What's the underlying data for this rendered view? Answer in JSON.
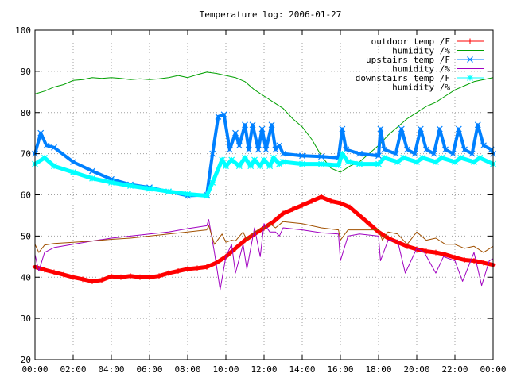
{
  "chart_data": {
    "type": "line",
    "title": "Temperature log: 2006-01-27",
    "xlabel": "",
    "ylabel": "",
    "xlim": [
      0,
      24
    ],
    "ylim": [
      20,
      100
    ],
    "grid": true,
    "legend_position": "top-right",
    "x_ticks": [
      {
        "value": 0,
        "label": "00:00"
      },
      {
        "value": 2,
        "label": "02:00"
      },
      {
        "value": 4,
        "label": "04:00"
      },
      {
        "value": 6,
        "label": "06:00"
      },
      {
        "value": 8,
        "label": "08:00"
      },
      {
        "value": 10,
        "label": "10:00"
      },
      {
        "value": 12,
        "label": "12:00"
      },
      {
        "value": 14,
        "label": "14:00"
      },
      {
        "value": 16,
        "label": "16:00"
      },
      {
        "value": 18,
        "label": "18:00"
      },
      {
        "value": 20,
        "label": "20:00"
      },
      {
        "value": 22,
        "label": "22:00"
      },
      {
        "value": 24,
        "label": "00:00"
      }
    ],
    "y_ticks": [
      {
        "value": 20,
        "label": "20"
      },
      {
        "value": 30,
        "label": "30"
      },
      {
        "value": 40,
        "label": "40"
      },
      {
        "value": 50,
        "label": "50"
      },
      {
        "value": 60,
        "label": "60"
      },
      {
        "value": 70,
        "label": "70"
      },
      {
        "value": 80,
        "label": "80"
      },
      {
        "value": 90,
        "label": "90"
      },
      {
        "value": 100,
        "label": "100"
      }
    ],
    "series": [
      {
        "name": "outdoor temp /F",
        "color": "#ff0000",
        "marker": "plus",
        "line_width": 5,
        "x": [
          0,
          0.5,
          1,
          1.5,
          2,
          2.5,
          3,
          3.5,
          4,
          4.5,
          5,
          5.5,
          6,
          6.5,
          7,
          7.5,
          8,
          8.5,
          9,
          9.5,
          10,
          10.5,
          11,
          11.5,
          12,
          12.5,
          13,
          13.5,
          14,
          14.5,
          15,
          15.5,
          16,
          16.5,
          17,
          17.5,
          18,
          18.5,
          19,
          19.5,
          20,
          20.5,
          21,
          21.5,
          22,
          22.5,
          23,
          23.5,
          24
        ],
        "y": [
          42.5,
          41.8,
          41.2,
          40.6,
          40.0,
          39.5,
          39.0,
          39.3,
          40.2,
          40.0,
          40.3,
          40.0,
          40.0,
          40.3,
          41.0,
          41.5,
          42.0,
          42.2,
          42.5,
          43.5,
          45.0,
          47.0,
          49.0,
          50.5,
          52.0,
          53.5,
          55.5,
          56.5,
          57.5,
          58.5,
          59.5,
          58.5,
          58.0,
          57.0,
          55.0,
          53.0,
          51.0,
          49.5,
          48.5,
          47.5,
          46.8,
          46.3,
          46.0,
          45.5,
          44.8,
          44.2,
          44.0,
          43.5,
          43.0
        ]
      },
      {
        "name": "humidity /%",
        "color": "#00a000",
        "marker": "none",
        "line_width": 1,
        "x": [
          0,
          0.5,
          1,
          1.5,
          2,
          2.5,
          3,
          3.5,
          4,
          4.5,
          5,
          5.5,
          6,
          6.5,
          7,
          7.5,
          8,
          8.5,
          9,
          9.5,
          10,
          10.5,
          11,
          11.5,
          12,
          12.5,
          13,
          13.5,
          14,
          14.5,
          15,
          15.5,
          16,
          16.5,
          17,
          17.5,
          18,
          18.5,
          19,
          19.5,
          20,
          20.5,
          21,
          21.5,
          22,
          22.5,
          23,
          23.5,
          24
        ],
        "y": [
          84.5,
          85.2,
          86.2,
          86.8,
          87.8,
          88.0,
          88.5,
          88.3,
          88.5,
          88.3,
          88.0,
          88.2,
          88.0,
          88.2,
          88.5,
          89.0,
          88.5,
          89.2,
          89.8,
          89.5,
          89.0,
          88.5,
          87.5,
          85.5,
          84.0,
          82.5,
          81.0,
          78.5,
          76.5,
          73.5,
          69.5,
          66.5,
          65.5,
          67.0,
          68.0,
          70.0,
          72.0,
          74.5,
          76.5,
          78.5,
          80.0,
          81.5,
          82.5,
          84.0,
          85.5,
          86.5,
          87.5,
          88.0,
          88.5
        ]
      },
      {
        "name": "upstairs temp /F",
        "color": "#0080ff",
        "marker": "cross",
        "line_width": 4,
        "x": [
          0,
          0.3,
          0.6,
          1,
          2,
          3,
          4,
          5,
          6,
          7,
          8,
          9,
          9.3,
          9.6,
          9.9,
          10.2,
          10.5,
          10.7,
          11,
          11.2,
          11.4,
          11.7,
          11.9,
          12.1,
          12.4,
          12.6,
          12.8,
          13,
          14,
          15,
          15.9,
          16.1,
          16.3,
          17,
          18,
          18.1,
          18.3,
          18.9,
          19.2,
          19.5,
          19.9,
          20.2,
          20.5,
          20.9,
          21.2,
          21.5,
          21.9,
          22.2,
          22.5,
          22.9,
          23.2,
          23.5,
          23.9,
          24
        ],
        "y": [
          70,
          75,
          72,
          71.5,
          68,
          65.8,
          63.8,
          62.5,
          61.8,
          60.8,
          59.8,
          60,
          70,
          79,
          79.5,
          71,
          75,
          72,
          77,
          71,
          77,
          71,
          76,
          71,
          77,
          71,
          72,
          70,
          69.5,
          69.3,
          69,
          76,
          71,
          70,
          69.5,
          76,
          71,
          70,
          76,
          71,
          70,
          76,
          71,
          70,
          76,
          71,
          70,
          76,
          71,
          70,
          77,
          72,
          71,
          70
        ]
      },
      {
        "name": "humidity /%",
        "color": "#a000c0",
        "marker": "none",
        "line_width": 1,
        "x": [
          0,
          0.2,
          0.5,
          1,
          2,
          3,
          4,
          5,
          6,
          7,
          8,
          9,
          9.1,
          9.4,
          9.7,
          10,
          10.3,
          10.5,
          10.9,
          11.1,
          11.5,
          11.8,
          12,
          12.3,
          12.6,
          12.8,
          13,
          14,
          15,
          15.9,
          16,
          16.4,
          17,
          18,
          18.1,
          18.5,
          19,
          19.4,
          20,
          20.4,
          21,
          21.4,
          22,
          22.4,
          23,
          23.4,
          23.8,
          24
        ],
        "y": [
          45.5,
          41.5,
          46,
          47.2,
          48,
          48.8,
          49.5,
          50,
          50.5,
          51,
          51.8,
          52.5,
          54,
          46,
          37,
          45,
          48,
          41,
          48,
          42,
          52,
          45,
          53,
          51,
          51,
          50,
          52,
          51.5,
          50.8,
          50.5,
          44,
          50,
          50.5,
          50,
          44,
          49,
          48.8,
          41,
          47,
          46,
          41,
          45,
          44,
          39,
          46,
          38,
          44,
          44.5
        ]
      },
      {
        "name": "downstairs temp /F",
        "color": "#00ffff",
        "marker": "star",
        "line_width": 5,
        "x": [
          0,
          0.5,
          1,
          2,
          3,
          4,
          5,
          6,
          7,
          8,
          9,
          9.3,
          9.8,
          10,
          10.3,
          10.7,
          11,
          11.3,
          11.5,
          11.8,
          12,
          12.3,
          12.5,
          12.8,
          13,
          14,
          15,
          15.9,
          16.1,
          16.4,
          17,
          18,
          18.3,
          19,
          19.3,
          20,
          20.3,
          21,
          21.3,
          22,
          22.3,
          23,
          23.3,
          24
        ],
        "y": [
          67.5,
          69,
          67,
          65.5,
          64,
          63,
          62.2,
          61.5,
          60.8,
          60.2,
          59.8,
          63,
          68.5,
          67,
          68.5,
          67,
          69,
          67,
          68.5,
          67,
          68.5,
          67,
          69,
          67.5,
          68,
          67.5,
          67.5,
          67.2,
          70,
          68,
          67.5,
          67.5,
          69,
          68,
          69,
          68,
          69,
          68,
          69,
          68,
          69,
          68,
          69,
          67.5
        ]
      },
      {
        "name": "humidity /%",
        "color": "#a05000",
        "marker": "none",
        "line_width": 1,
        "x": [
          0,
          0.2,
          0.5,
          1,
          2,
          3,
          4,
          5,
          6,
          7,
          8,
          9,
          9.1,
          9.4,
          9.8,
          10,
          10.3,
          10.5,
          10.9,
          11.1,
          11.5,
          12,
          12.3,
          12.6,
          13,
          14,
          15,
          15.9,
          16,
          16.4,
          17,
          18,
          18.2,
          18.5,
          19,
          19.5,
          20,
          20.5,
          21,
          21.5,
          22,
          22.5,
          23,
          23.5,
          24
        ],
        "y": [
          48,
          46,
          47.8,
          48.2,
          48.5,
          48.8,
          49.2,
          49.5,
          50,
          50.5,
          51,
          51.5,
          52.5,
          48,
          50.5,
          48.5,
          49,
          48.8,
          51,
          49,
          51,
          52,
          53,
          52,
          53.5,
          53,
          52,
          51.5,
          49,
          51.5,
          51.5,
          51.5,
          49,
          51,
          50.5,
          48,
          51,
          49,
          49.5,
          48,
          48,
          47,
          47.5,
          46,
          47.5
        ]
      }
    ]
  }
}
